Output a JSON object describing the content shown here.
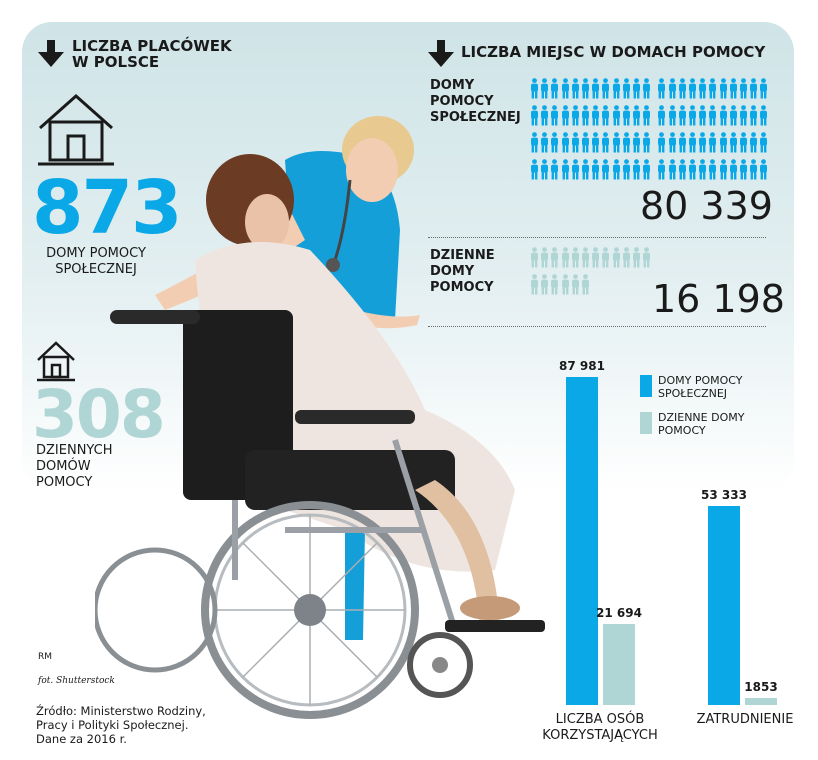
{
  "colors": {
    "primary": "#0ba8e8",
    "secondary": "#b0d5d5",
    "text": "#1a1a1a"
  },
  "left": {
    "heading_l1": "LICZBA PLACÓWEK",
    "heading_l2": "W POLSCE",
    "home_icon": "house-icon",
    "dps_count": "873",
    "dps_l1": "DOMY POMOCY",
    "dps_l2": "SPOŁECZNEJ",
    "ddp_count": "308",
    "ddp_l1": "DZIENNYCH",
    "ddp_l2": "DOMÓW",
    "ddp_l3": "POMOCY"
  },
  "places": {
    "heading": "LICZBA MIEJSC W DOMACH POMOCY",
    "dps_l1": "DOMY",
    "dps_l2": "POMOCY",
    "dps_l3": "SPOŁECZNEJ",
    "dps_value": "80 339",
    "ddp_l1": "DZIENNE",
    "ddp_l2": "DOMY",
    "ddp_l3": "POMOCY",
    "ddp_value": "16 198"
  },
  "credits": {
    "author": "RM",
    "photo": "fot. Shutterstock",
    "src_l1": "Źródło: Ministerstwo Rodziny,",
    "src_l2": "Pracy i Polityki Społecznej.",
    "src_l3": "Dane za 2016 r."
  },
  "chart_data": {
    "type": "bar",
    "categories": [
      "LICZBA OSÓB KORZYSTAJĄCYCH",
      "ZATRUDNIENIE"
    ],
    "category_lines": [
      [
        "LICZBA OSÓB",
        "KORZYSTAJĄCYCH"
      ],
      [
        "ZATRUDNIENIE"
      ]
    ],
    "series": [
      {
        "name": "DOMY POMOCY SPOŁECZNEJ",
        "name_lines": [
          "DOMY POMOCY",
          "SPOŁECZNEJ"
        ],
        "color": "#0ba8e8",
        "values": [
          87981,
          53333
        ],
        "labels": [
          "87 981",
          "53 333"
        ]
      },
      {
        "name": "DZIENNE DOMY POMOCY",
        "name_lines": [
          "DZIENNE DOMY",
          "POMOCY"
        ],
        "color": "#b0d5d5",
        "values": [
          21694,
          1853
        ],
        "labels": [
          "21 694",
          "1853"
        ]
      }
    ],
    "ylim": [
      0,
      87981
    ],
    "legend": "top-right"
  }
}
